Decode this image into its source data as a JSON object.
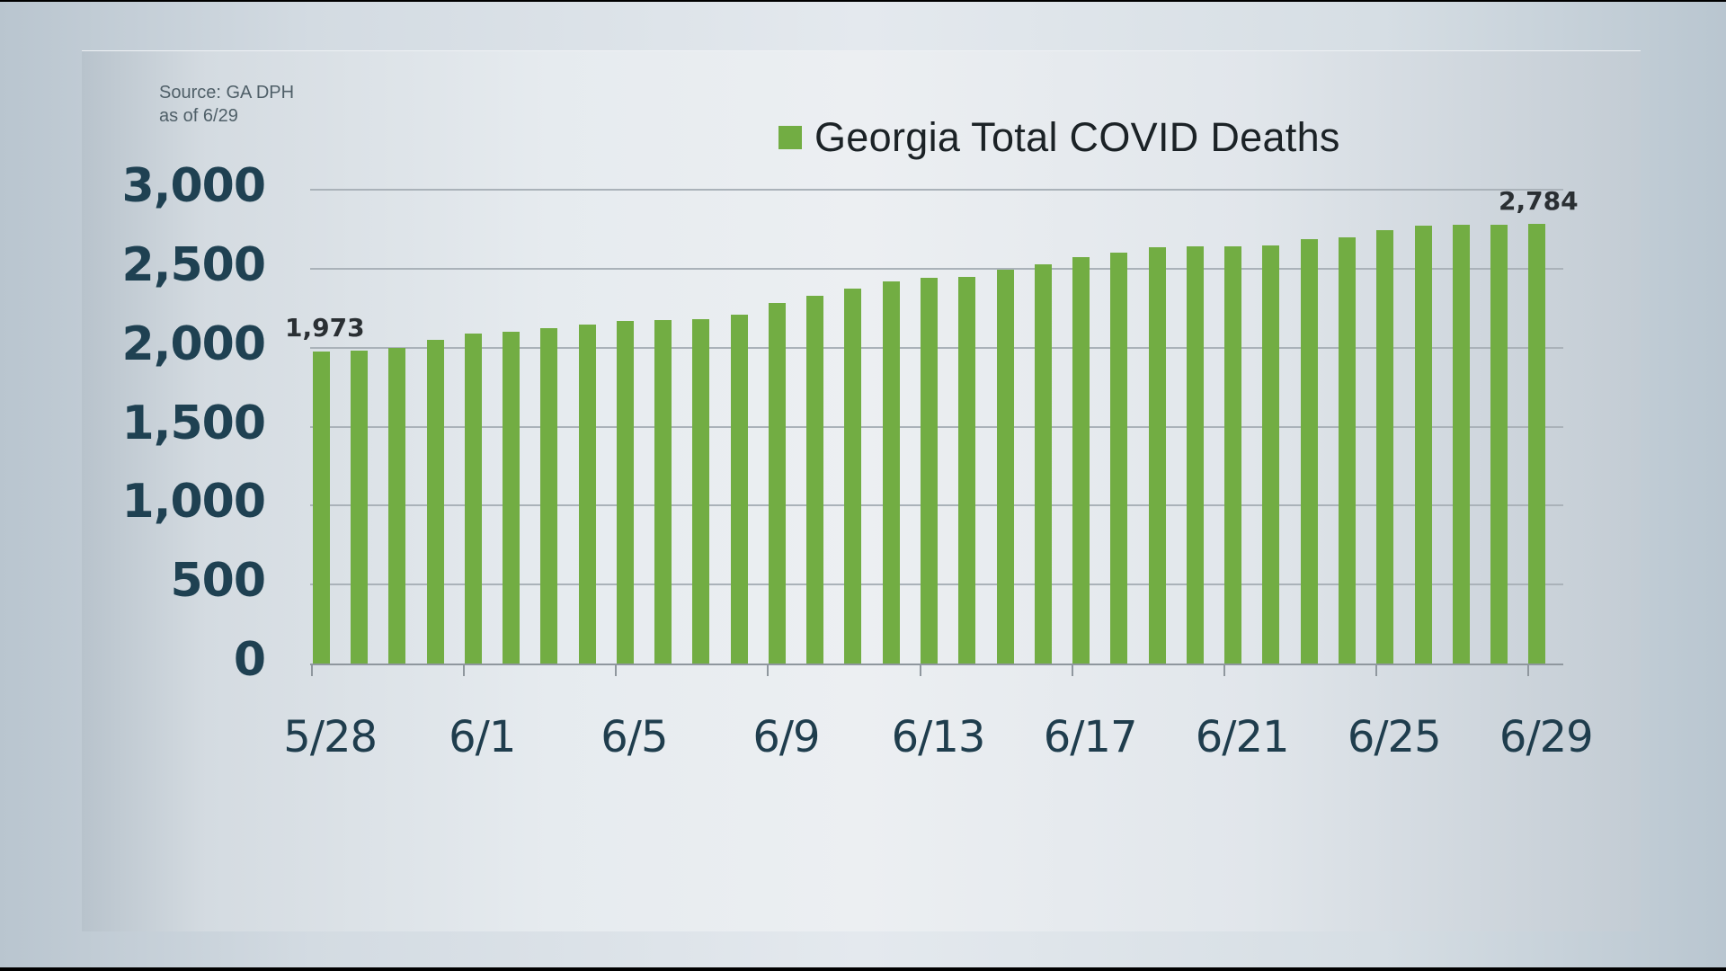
{
  "source": {
    "line1": "Source: GA DPH",
    "line2": "as of 6/29"
  },
  "legend": {
    "label": "Georgia Total COVID Deaths",
    "color": "#72ad43"
  },
  "annotations": {
    "first": "1,973",
    "last": "2,784"
  },
  "chart_data": {
    "type": "bar",
    "title": "Georgia Total COVID Deaths",
    "xlabel": "",
    "ylabel": "",
    "ylim": [
      0,
      3000
    ],
    "yticks": [
      "0",
      "500",
      "1,000",
      "1,500",
      "2,000",
      "2,500",
      "3,000"
    ],
    "xticks": [
      "5/28",
      "6/1",
      "6/5",
      "6/9",
      "6/13",
      "6/17",
      "6/21",
      "6/25",
      "6/29"
    ],
    "grid": true,
    "legend_position": "top-right",
    "color": "#72ad43",
    "categories": [
      "5/28",
      "5/29",
      "5/30",
      "5/31",
      "6/1",
      "6/2",
      "6/3",
      "6/4",
      "6/5",
      "6/6",
      "6/7",
      "6/8",
      "6/9",
      "6/10",
      "6/11",
      "6/12",
      "6/13",
      "6/14",
      "6/15",
      "6/16",
      "6/17",
      "6/18",
      "6/19",
      "6/20",
      "6/21",
      "6/22",
      "6/23",
      "6/24",
      "6/25",
      "6/26",
      "6/27",
      "6/28",
      "6/29"
    ],
    "series": [
      {
        "name": "Georgia Total COVID Deaths",
        "values": [
          1973,
          1981,
          2000,
          2051,
          2087,
          2098,
          2123,
          2146,
          2170,
          2176,
          2178,
          2208,
          2281,
          2328,
          2375,
          2417,
          2442,
          2449,
          2493,
          2525,
          2573,
          2603,
          2635,
          2643,
          2643,
          2648,
          2686,
          2698,
          2743,
          2772,
          2776,
          2779,
          2784
        ]
      }
    ],
    "annotations": [
      {
        "category": "5/28",
        "text": "1,973"
      },
      {
        "category": "6/29",
        "text": "2,784"
      }
    ],
    "source": "Source: GA DPH as of 6/29"
  }
}
